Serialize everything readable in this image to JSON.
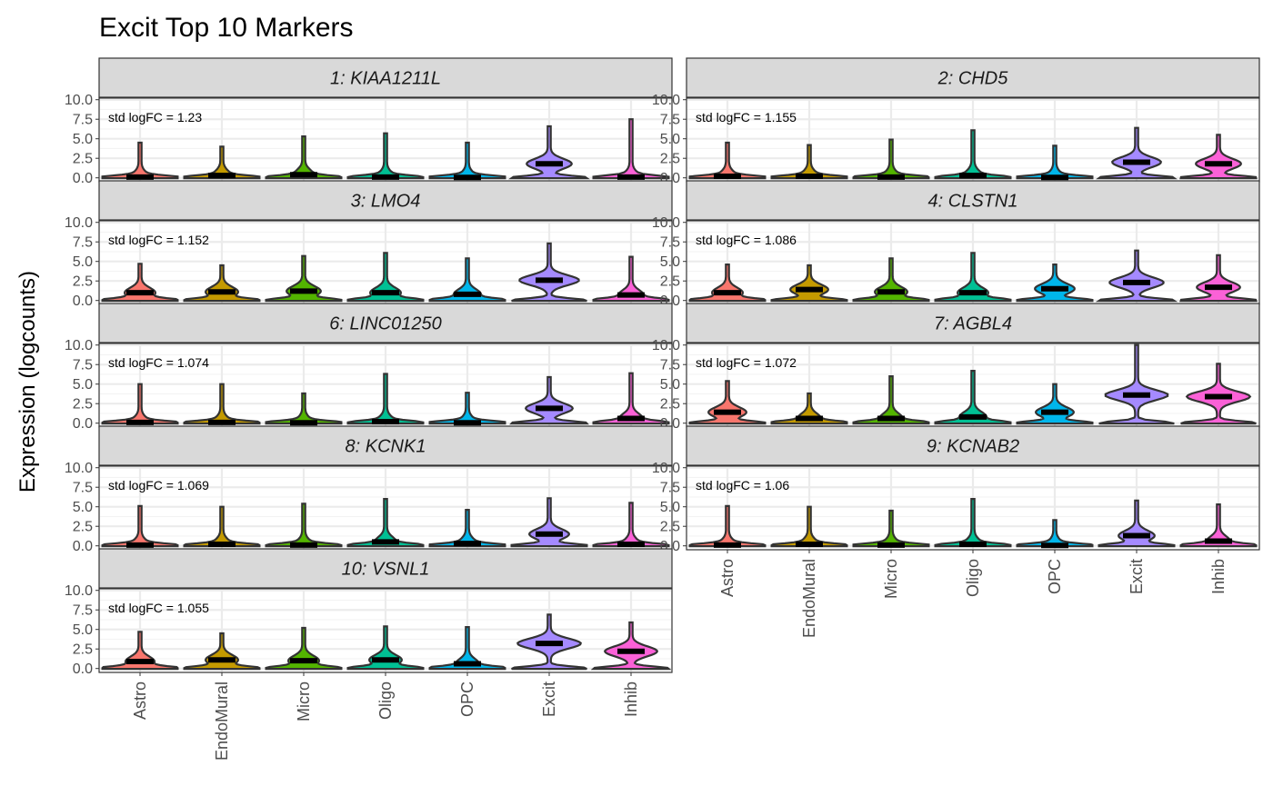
{
  "chart_data": {
    "type": "violin",
    "title": "Excit Top 10 Markers",
    "ylabel": "Expression (logcounts)",
    "xlabel": "",
    "ylim": [
      0,
      10
    ],
    "yticks": [
      "0.0",
      "2.5",
      "5.0",
      "7.5",
      "10.0"
    ],
    "ytick_values": [
      0,
      2.5,
      5,
      7.5,
      10
    ],
    "categories": [
      "Astro",
      "EndoMural",
      "Micro",
      "Oligo",
      "OPC",
      "Excit",
      "Inhib"
    ],
    "colors": {
      "Astro": "#F8766D",
      "EndoMural": "#C49A00",
      "Micro": "#53B400",
      "Oligo": "#00C094",
      "OPC": "#00B6EB",
      "Excit": "#A58AFF",
      "Inhib": "#FB61D7"
    },
    "grid": true,
    "panels": [
      {
        "strip": "1: KIAA1211L",
        "annotation": "std logFC = 1.23",
        "medians": [
          0.1,
          0.3,
          0.4,
          0.1,
          0.05,
          1.8,
          0.1
        ],
        "maxima": [
          4.5,
          4.0,
          5.3,
          5.7,
          4.5,
          6.6,
          7.5
        ]
      },
      {
        "strip": "2: CHD5",
        "annotation": "std logFC = 1.155",
        "medians": [
          0.2,
          0.2,
          0.1,
          0.3,
          0.05,
          2.0,
          1.8
        ],
        "maxima": [
          4.5,
          4.2,
          4.9,
          6.1,
          4.1,
          6.4,
          5.5
        ]
      },
      {
        "strip": "3: LMO4",
        "annotation": "std logFC = 1.152",
        "medians": [
          1.0,
          1.1,
          1.2,
          1.0,
          0.8,
          2.6,
          0.7
        ],
        "maxima": [
          4.7,
          4.5,
          5.7,
          6.1,
          5.4,
          7.3,
          5.6
        ]
      },
      {
        "strip": "4: CLSTN1",
        "annotation": "std logFC = 1.086",
        "medians": [
          1.0,
          1.4,
          1.1,
          1.0,
          1.5,
          2.3,
          1.7
        ],
        "maxima": [
          4.6,
          4.5,
          5.4,
          6.1,
          4.6,
          6.4,
          5.8
        ]
      },
      {
        "strip": "6: LINC01250",
        "annotation": "std logFC = 1.074",
        "medians": [
          0.1,
          0.1,
          0.05,
          0.2,
          0.05,
          1.9,
          0.6
        ],
        "maxima": [
          5.0,
          5.0,
          3.8,
          6.3,
          3.9,
          5.9,
          6.4
        ]
      },
      {
        "strip": "7: AGBL4",
        "annotation": "std logFC = 1.072",
        "medians": [
          1.4,
          0.6,
          0.6,
          0.8,
          1.4,
          3.6,
          3.4
        ],
        "maxima": [
          5.4,
          3.8,
          6.0,
          6.7,
          5.0,
          10.0,
          7.6
        ]
      },
      {
        "strip": "8: KCNK1",
        "annotation": "std logFC = 1.069",
        "medians": [
          0.1,
          0.2,
          0.1,
          0.5,
          0.3,
          1.5,
          0.2
        ],
        "maxima": [
          5.1,
          5.0,
          5.4,
          6.0,
          4.6,
          6.1,
          5.5
        ]
      },
      {
        "strip": "9: KCNAB2",
        "annotation": "std logFC = 1.06",
        "medians": [
          0.1,
          0.2,
          0.1,
          0.2,
          0.05,
          1.3,
          0.6
        ],
        "maxima": [
          5.1,
          5.0,
          4.5,
          6.0,
          3.3,
          5.8,
          5.3
        ]
      },
      {
        "strip": "10: VSNL1",
        "annotation": "std logFC = 1.055",
        "medians": [
          0.9,
          1.1,
          1.0,
          1.1,
          0.6,
          3.2,
          2.2
        ],
        "maxima": [
          4.7,
          4.5,
          5.2,
          5.4,
          5.3,
          6.9,
          5.9
        ]
      }
    ]
  }
}
